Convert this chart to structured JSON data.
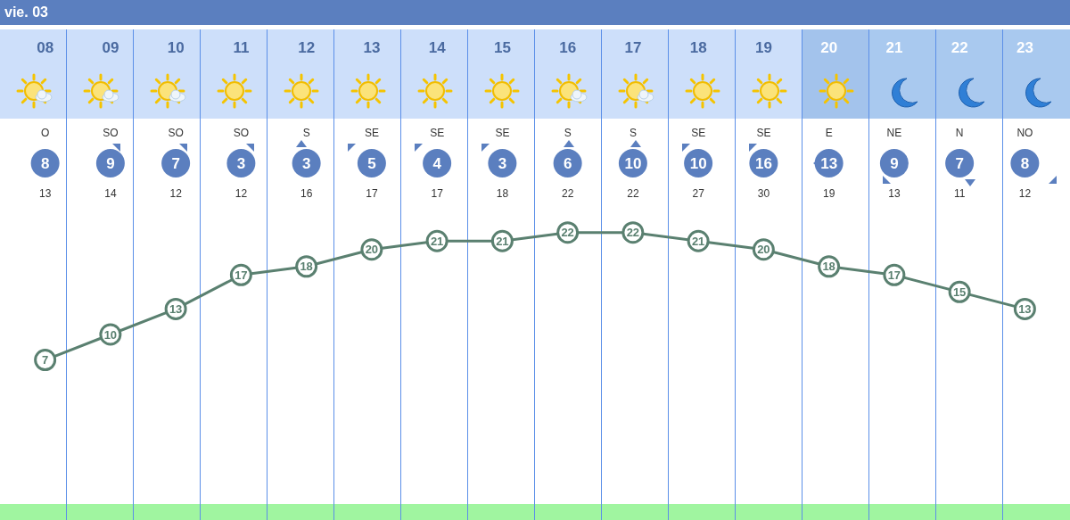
{
  "chart_data": {
    "type": "line",
    "title": "vie. 03",
    "categories": [
      "08",
      "09",
      "10",
      "11",
      "12",
      "13",
      "14",
      "15",
      "16",
      "17",
      "18",
      "19",
      "20",
      "21",
      "22",
      "23"
    ],
    "series": [
      {
        "color": "#5a8070",
        "values": [
          7,
          10,
          13,
          17,
          18,
          20,
          21,
          21,
          22,
          22,
          21,
          20,
          18,
          17,
          15,
          13
        ]
      }
    ],
    "annotations": [
      "O",
      "SO",
      "SO",
      "SO",
      "S",
      "SE",
      "SE",
      "SE",
      "S",
      "S",
      "SE",
      "SE",
      "E",
      "NE",
      "N",
      "NO",
      "8",
      "9",
      "7",
      "3",
      "3",
      "5",
      "4",
      "3",
      "6",
      "10",
      "10",
      "16",
      "13",
      "9",
      "7",
      "8",
      "13",
      "14",
      "12",
      "12",
      "16",
      "17",
      "17",
      "18",
      "22",
      "22",
      "27",
      "30",
      "19",
      "13",
      "11",
      "12"
    ],
    "data_labels": true,
    "marker": "circle"
  }
}
